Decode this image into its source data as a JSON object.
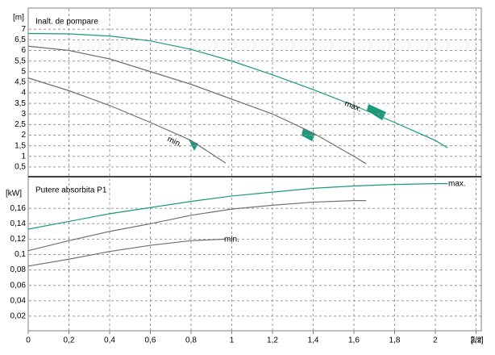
{
  "chart_data": [
    {
      "type": "line",
      "title": "Inalt. de pompare",
      "ylabel": "[m]",
      "ylim": [
        0,
        8
      ],
      "yticks": [
        {
          "value": 0.5,
          "label": "0,5"
        },
        1,
        {
          "value": 1.5,
          "label": "1,5"
        },
        2,
        {
          "value": 2.5,
          "label": "2,5"
        },
        3,
        {
          "value": 3.5,
          "label": "3,5"
        },
        4,
        {
          "value": 4.5,
          "label": "4,5"
        },
        5,
        {
          "value": 5.5,
          "label": "5,5"
        },
        6,
        {
          "value": 6.5,
          "label": "6,5"
        },
        7
      ],
      "grid": true,
      "series": [
        {
          "name": "max.",
          "color": "#1a9a7a",
          "x": [
            0,
            0.2,
            0.4,
            0.6,
            0.8,
            1.0,
            1.2,
            1.4,
            1.6,
            1.8,
            2.0,
            2.06
          ],
          "values": [
            6.8,
            6.78,
            6.68,
            6.45,
            6.05,
            5.5,
            4.85,
            4.15,
            3.4,
            2.6,
            1.75,
            1.4
          ]
        },
        {
          "color": "#707070",
          "x": [
            0,
            0.2,
            0.4,
            0.6,
            0.8,
            1.0,
            1.2,
            1.4,
            1.6,
            1.66
          ],
          "values": [
            6.2,
            6.0,
            5.6,
            5.0,
            4.4,
            3.7,
            3.0,
            2.1,
            1.0,
            0.65
          ]
        },
        {
          "name": "min.",
          "color": "#707070",
          "x": [
            0,
            0.2,
            0.4,
            0.6,
            0.8,
            0.97
          ],
          "values": [
            4.7,
            4.1,
            3.4,
            2.6,
            1.75,
            0.68
          ]
        }
      ]
    },
    {
      "type": "line",
      "title": "Putere absorbita P1",
      "ylabel": "[kW]",
      "xlabel": "[l/s]",
      "xlim": [
        0,
        2.22
      ],
      "xticks": [
        0,
        {
          "value": 0.2,
          "label": "0,2"
        },
        {
          "value": 0.4,
          "label": "0,4"
        },
        {
          "value": 0.6,
          "label": "0,6"
        },
        {
          "value": 0.8,
          "label": "0,8"
        },
        1,
        {
          "value": 1.2,
          "label": "1,2"
        },
        {
          "value": 1.4,
          "label": "1,4"
        },
        {
          "value": 1.6,
          "label": "1,6"
        },
        {
          "value": 1.8,
          "label": "1,8"
        },
        2,
        {
          "value": 2.2,
          "label": "2,2"
        }
      ],
      "ylim": [
        0,
        0.2
      ],
      "yticks": [
        {
          "value": 0.02,
          "label": "0,02"
        },
        {
          "value": 0.04,
          "label": "0,04"
        },
        {
          "value": 0.06,
          "label": "0,06"
        },
        {
          "value": 0.08,
          "label": "0,08"
        },
        {
          "value": 0.1,
          "label": "0,1"
        },
        {
          "value": 0.12,
          "label": "0,12"
        },
        {
          "value": 0.14,
          "label": "0,14"
        },
        {
          "value": 0.16,
          "label": "0,16"
        }
      ],
      "grid": true,
      "series": [
        {
          "name": "max.",
          "color": "#1a9a7a",
          "x": [
            0,
            0.2,
            0.4,
            0.6,
            0.8,
            1.0,
            1.2,
            1.4,
            1.6,
            1.8,
            2.0,
            2.06
          ],
          "values": [
            0.133,
            0.143,
            0.153,
            0.161,
            0.169,
            0.176,
            0.181,
            0.186,
            0.189,
            0.191,
            0.192,
            0.192
          ]
        },
        {
          "color": "#707070",
          "x": [
            0,
            0.2,
            0.4,
            0.6,
            0.8,
            1.0,
            1.2,
            1.4,
            1.6,
            1.66
          ],
          "values": [
            0.105,
            0.118,
            0.13,
            0.14,
            0.151,
            0.159,
            0.164,
            0.168,
            0.17,
            0.17
          ]
        },
        {
          "name": "min.",
          "color": "#707070",
          "x": [
            0,
            0.2,
            0.4,
            0.6,
            0.8,
            0.97
          ],
          "values": [
            0.085,
            0.094,
            0.104,
            0.112,
            0.118,
            0.12
          ]
        }
      ]
    }
  ]
}
